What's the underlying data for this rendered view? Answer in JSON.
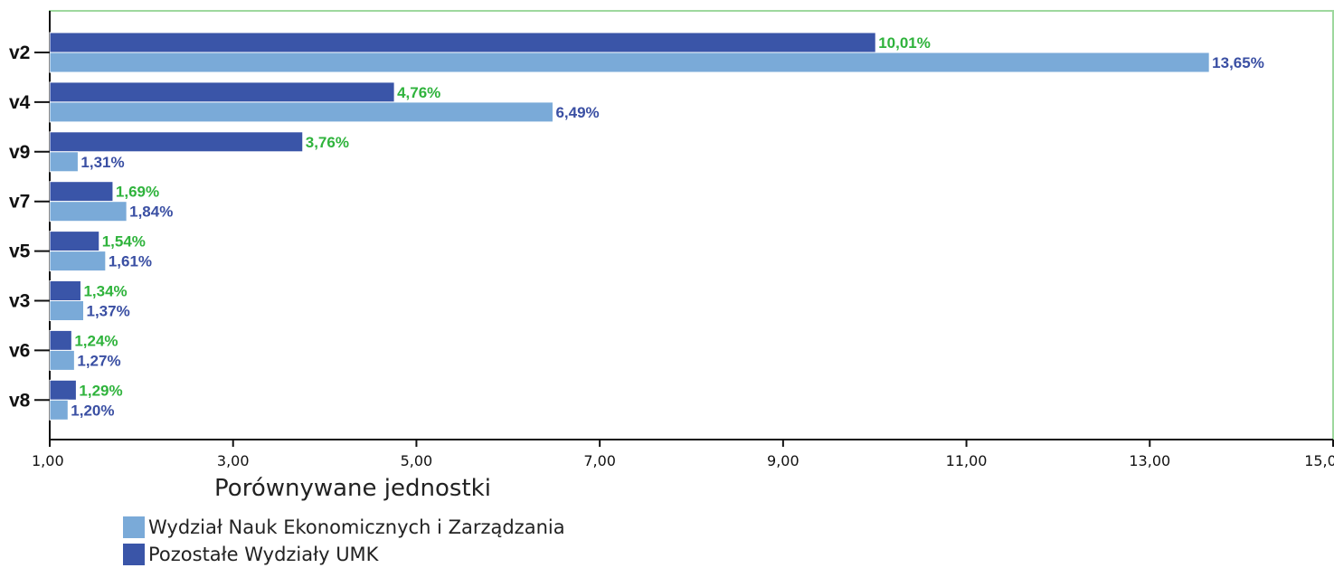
{
  "chart_data": {
    "type": "bar",
    "orientation": "horizontal",
    "categories": [
      "v2",
      "v4",
      "v9",
      "v7",
      "v5",
      "v3",
      "v6",
      "v8"
    ],
    "series": [
      {
        "name": "Pozostałe Wydziały UMK",
        "color": "#3a55a8",
        "label_color": "#2fb33c",
        "values": [
          10.01,
          4.76,
          3.76,
          1.69,
          1.54,
          1.34,
          1.24,
          1.29
        ],
        "labels": [
          "10,01%",
          "4,76%",
          "3,76%",
          "1,69%",
          "1,54%",
          "1,34%",
          "1,24%",
          "1,29%"
        ]
      },
      {
        "name": "Wydział Nauk Ekonomicznych i Zarządzania",
        "color": "#7aaad8",
        "label_color": "#3a4fa3",
        "values": [
          13.65,
          6.49,
          1.31,
          1.84,
          1.61,
          1.37,
          1.27,
          1.2
        ],
        "labels": [
          "13,65%",
          "6,49%",
          "1,31%",
          "1,84%",
          "1,61%",
          "1,37%",
          "1,27%",
          "1,20%"
        ]
      }
    ],
    "xlim": [
      1.0,
      15.0
    ],
    "xticks": [
      1,
      3,
      5,
      7,
      9,
      11,
      13,
      15
    ],
    "xtick_labels": [
      "1,00",
      "3,00",
      "5,00",
      "7,00",
      "9,00",
      "11,00",
      "13,00",
      "15,00"
    ],
    "xlabel": "Porównywane jednostki",
    "ylabel": "",
    "title": "",
    "grid": false,
    "legend_position": "bottom-left",
    "frame_color": "#9ed89e"
  },
  "legend": {
    "items": [
      {
        "label": "Wydział Nauk Ekonomicznych i Zarządzania",
        "color": "#7aaad8"
      },
      {
        "label": "Pozostałe Wydziały UMK",
        "color": "#3a55a8"
      }
    ]
  }
}
